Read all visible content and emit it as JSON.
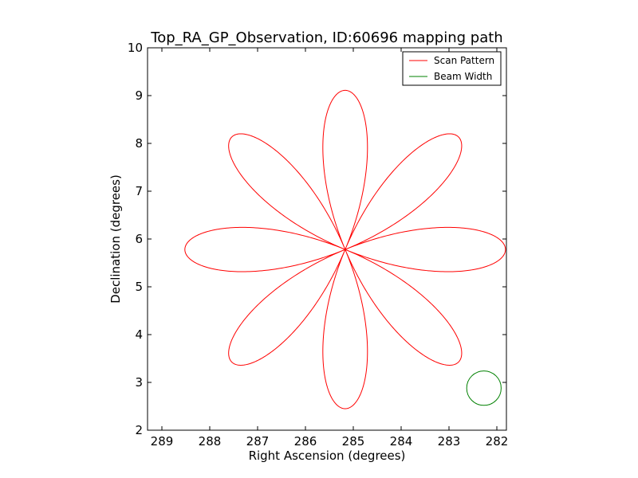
{
  "chart_data": {
    "type": "line",
    "title": "Top_RA_GP_Observation, ID:60696 mapping path",
    "xlabel": "Right Ascension (degrees)",
    "ylabel": "Declination (degrees)",
    "xlim": [
      289.3,
      281.8
    ],
    "ylim": [
      2,
      10
    ],
    "x_inverted": true,
    "xticks": [
      "289",
      "288",
      "287",
      "286",
      "285",
      "284",
      "283",
      "282"
    ],
    "yticks": [
      "2",
      "3",
      "4",
      "5",
      "6",
      "7",
      "8",
      "9",
      "10"
    ],
    "grid": false,
    "legend_position": "top-right",
    "series": [
      {
        "name": "Scan Pattern",
        "color": "#ff0000",
        "shape": "rose",
        "petals": 8,
        "center": [
          285.17,
          5.78
        ],
        "radius_deg": 3.35,
        "start": [
          288.55,
          5.78
        ]
      },
      {
        "name": "Beam Width",
        "color": "#008000",
        "shape": "circle",
        "center": [
          282.27,
          2.88
        ],
        "radius_deg": 0.36
      }
    ]
  }
}
